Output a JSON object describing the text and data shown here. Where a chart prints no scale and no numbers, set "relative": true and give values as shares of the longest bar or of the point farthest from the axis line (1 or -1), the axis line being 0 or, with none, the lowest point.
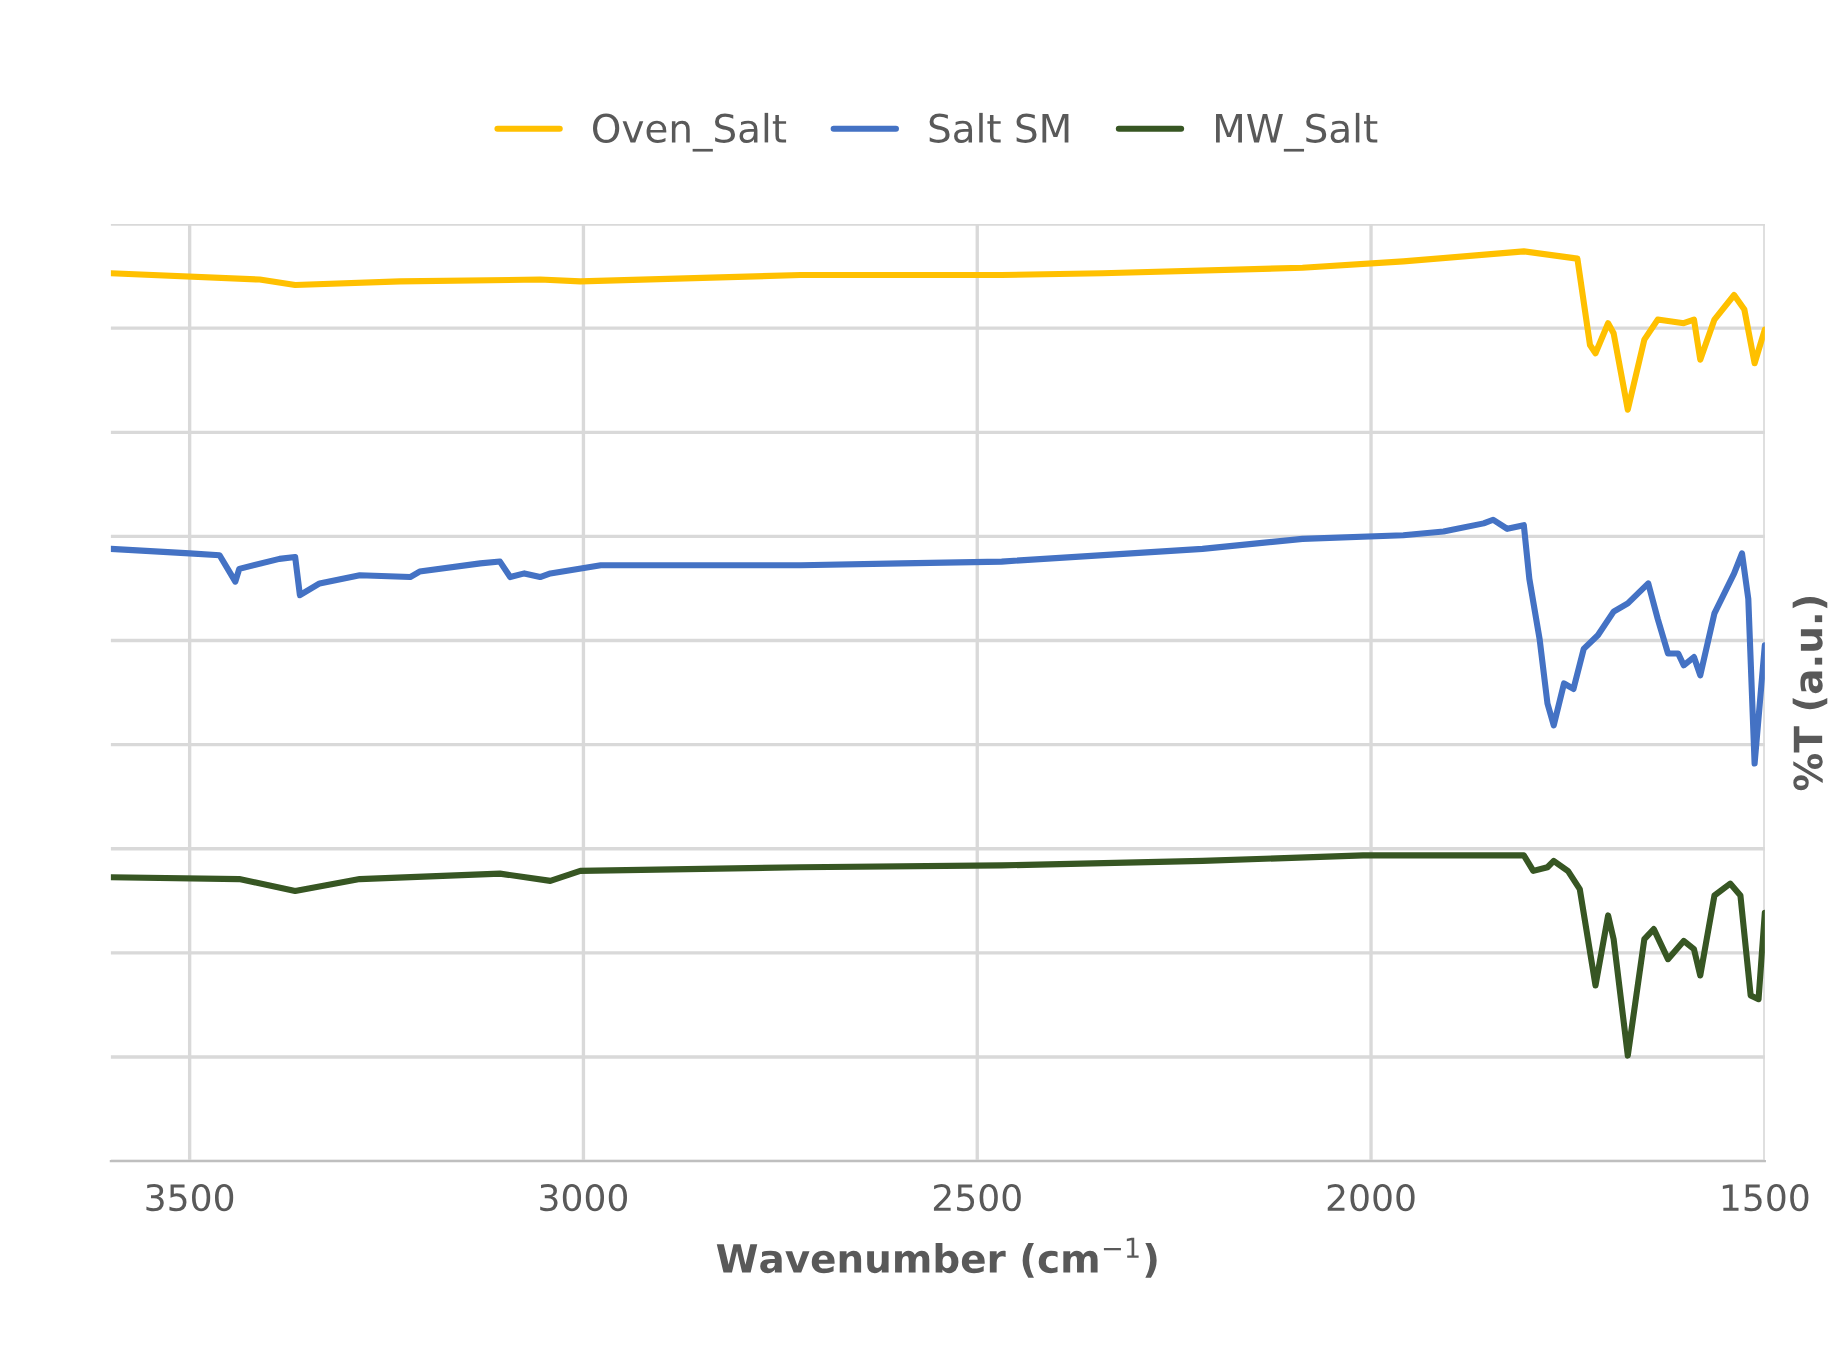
{
  "chart_data": {
    "type": "line",
    "xlabel": "Wavenumber (cm$^{−1}$)",
    "ylabel": "%T (a.u.)",
    "relative": true,
    "xlim": [
      3600,
      1500
    ],
    "xticks": [
      3500,
      3000,
      2500,
      2000,
      1500
    ],
    "grid": true,
    "legend": "top",
    "marker": "none",
    "line_style": "solid",
    "series": [
      {
        "name": "Oven_Salt",
        "color": "#ffc000",
        "x": [
          3600,
          3411,
          3366,
          3233,
          3055,
          3004,
          2724,
          2469,
          2341,
          2087,
          1959,
          1806,
          1738,
          1722,
          1715,
          1699,
          1692,
          1674,
          1653,
          1636,
          1603,
          1590,
          1582,
          1564,
          1539,
          1526,
          1513,
          1500
        ],
        "values": [
          0.976,
          0.969,
          0.963,
          0.967,
          0.969,
          0.967,
          0.974,
          0.974,
          0.976,
          0.982,
          0.989,
          1.0,
          0.992,
          0.897,
          0.888,
          0.921,
          0.91,
          0.826,
          0.903,
          0.925,
          0.921,
          0.925,
          0.881,
          0.925,
          0.952,
          0.936,
          0.877,
          0.914
        ]
      },
      {
        "name": "Salt SM",
        "color": "#4472c4",
        "x": [
          3600,
          3500,
          3462,
          3442,
          3437,
          3386,
          3366,
          3360,
          3335,
          3284,
          3220,
          3208,
          3131,
          3106,
          3093,
          3075,
          3055,
          3042,
          2978,
          2724,
          2596,
          2469,
          2214,
          2087,
          1959,
          1908,
          1857,
          1845,
          1827,
          1806,
          1799,
          1786,
          1776,
          1768,
          1755,
          1743,
          1730,
          1712,
          1692,
          1674,
          1648,
          1636,
          1623,
          1610,
          1603,
          1590,
          1582,
          1564,
          1539,
          1529,
          1521,
          1513,
          1500
        ],
        "values": [
          0.673,
          0.668,
          0.666,
          0.637,
          0.651,
          0.662,
          0.664,
          0.622,
          0.635,
          0.644,
          0.642,
          0.648,
          0.657,
          0.659,
          0.642,
          0.646,
          0.642,
          0.646,
          0.655,
          0.655,
          0.657,
          0.659,
          0.673,
          0.684,
          0.688,
          0.692,
          0.701,
          0.705,
          0.695,
          0.699,
          0.64,
          0.574,
          0.503,
          0.479,
          0.525,
          0.519,
          0.563,
          0.578,
          0.604,
          0.613,
          0.635,
          0.596,
          0.558,
          0.558,
          0.545,
          0.554,
          0.534,
          0.602,
          0.646,
          0.668,
          0.618,
          0.437,
          0.567
        ]
      },
      {
        "name": "MW_Salt",
        "color": "#375623",
        "x": [
          3600,
          3437,
          3366,
          3284,
          3106,
          3042,
          3004,
          2724,
          2469,
          2214,
          2010,
          1857,
          1806,
          1794,
          1776,
          1768,
          1750,
          1735,
          1715,
          1699,
          1692,
          1674,
          1653,
          1641,
          1623,
          1603,
          1590,
          1582,
          1564,
          1544,
          1531,
          1518,
          1508,
          1500
        ],
        "values": [
          0.312,
          0.31,
          0.297,
          0.31,
          0.316,
          0.308,
          0.319,
          0.323,
          0.325,
          0.33,
          0.336,
          0.336,
          0.336,
          0.319,
          0.323,
          0.33,
          0.319,
          0.299,
          0.193,
          0.27,
          0.244,
          0.116,
          0.244,
          0.255,
          0.222,
          0.242,
          0.233,
          0.204,
          0.292,
          0.305,
          0.292,
          0.182,
          0.178,
          0.273
        ]
      }
    ]
  }
}
